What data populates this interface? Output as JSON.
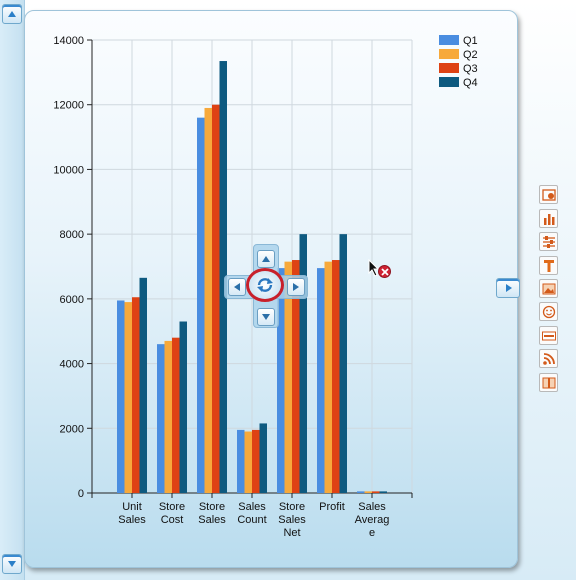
{
  "chart_data": {
    "type": "bar",
    "categories": [
      [
        "Unit",
        "Sales"
      ],
      [
        "Store",
        "Cost"
      ],
      [
        "Store",
        "Sales"
      ],
      [
        "Sales",
        "Count"
      ],
      [
        "Store",
        "Sales",
        "Net"
      ],
      [
        "Profit"
      ],
      [
        "Sales",
        "Averag",
        "e"
      ]
    ],
    "series": [
      {
        "name": "Q1",
        "color": "#4a8de0",
        "values": [
          5950,
          4600,
          11600,
          1950,
          6950,
          6950,
          50
        ]
      },
      {
        "name": "Q2",
        "color": "#f7a93b",
        "values": [
          5900,
          4700,
          11900,
          1900,
          7150,
          7150,
          50
        ]
      },
      {
        "name": "Q3",
        "color": "#de4214",
        "values": [
          6050,
          4800,
          12000,
          1950,
          7200,
          7200,
          50
        ]
      },
      {
        "name": "Q4",
        "color": "#0e5a80",
        "values": [
          6650,
          5300,
          13350,
          2150,
          8000,
          8000,
          50
        ]
      }
    ],
    "ylim": [
      0,
      14000
    ],
    "yticks": [
      0,
      2000,
      4000,
      6000,
      8000,
      10000,
      12000,
      14000
    ],
    "grid": true,
    "legend_position": "top-right"
  },
  "controls": {
    "pan_control": [
      "pan-up-icon",
      "pan-left-icon",
      "pan-right-icon",
      "pan-down-icon",
      "reset-view-icon"
    ],
    "right_tools": [
      "chart-properties-icon",
      "bar-chart-icon",
      "filter-sliders-icon",
      "text-icon",
      "image-icon",
      "emoticon-icon",
      "html-icon",
      "rss-icon",
      "book-icon"
    ]
  }
}
